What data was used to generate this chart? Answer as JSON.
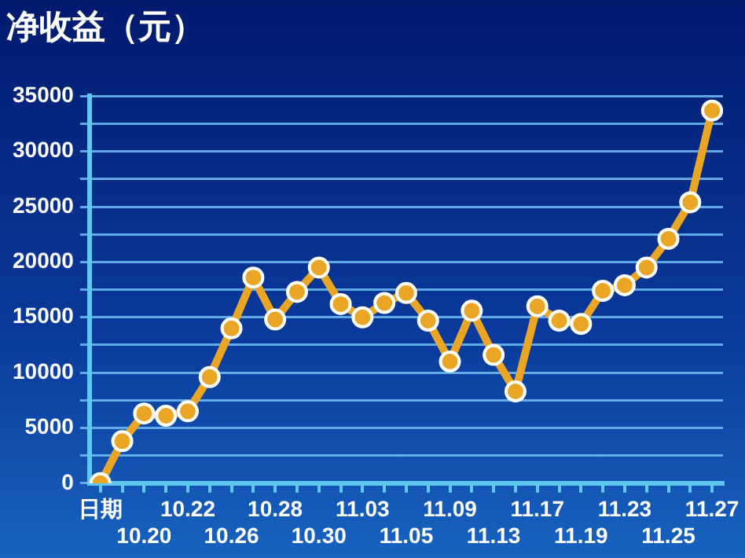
{
  "chart_data": {
    "type": "line",
    "title": "净收益（元）",
    "categories": [
      "日期",
      null,
      "10.20",
      null,
      "10.22",
      null,
      "10.26",
      null,
      "10.28",
      null,
      "10.30",
      null,
      "11.03",
      null,
      "11.05",
      null,
      "11.09",
      null,
      "11.13",
      null,
      "11.17",
      null,
      "11.19",
      null,
      "11.23",
      null,
      "11.25",
      null,
      "11.27"
    ],
    "series": [
      {
        "color": "#eaa524",
        "values": [
          0,
          3800,
          6300,
          6100,
          6500,
          9600,
          14000,
          18600,
          14800,
          17300,
          19500,
          16200,
          15000,
          16300,
          17200,
          14700,
          11000,
          15600,
          11600,
          8300,
          16000,
          14700,
          14400,
          17400,
          17900,
          19500,
          22100,
          25400,
          33700
        ]
      }
    ],
    "ylim": [
      0,
      35000
    ],
    "yticks": [
      0,
      {
        "value": 2500,
        "label": null
      },
      5000,
      {
        "value": 7500,
        "label": null
      },
      10000,
      {
        "value": 12500,
        "label": null
      },
      15000,
      {
        "value": 17500,
        "label": null
      },
      20000,
      {
        "value": 22500,
        "label": null
      },
      25000,
      {
        "value": 27500,
        "label": null
      },
      30000,
      {
        "value": 32500,
        "label": null
      },
      35000
    ],
    "grid": "y",
    "marker": "circle",
    "line_style": "solid",
    "legend": false
  }
}
